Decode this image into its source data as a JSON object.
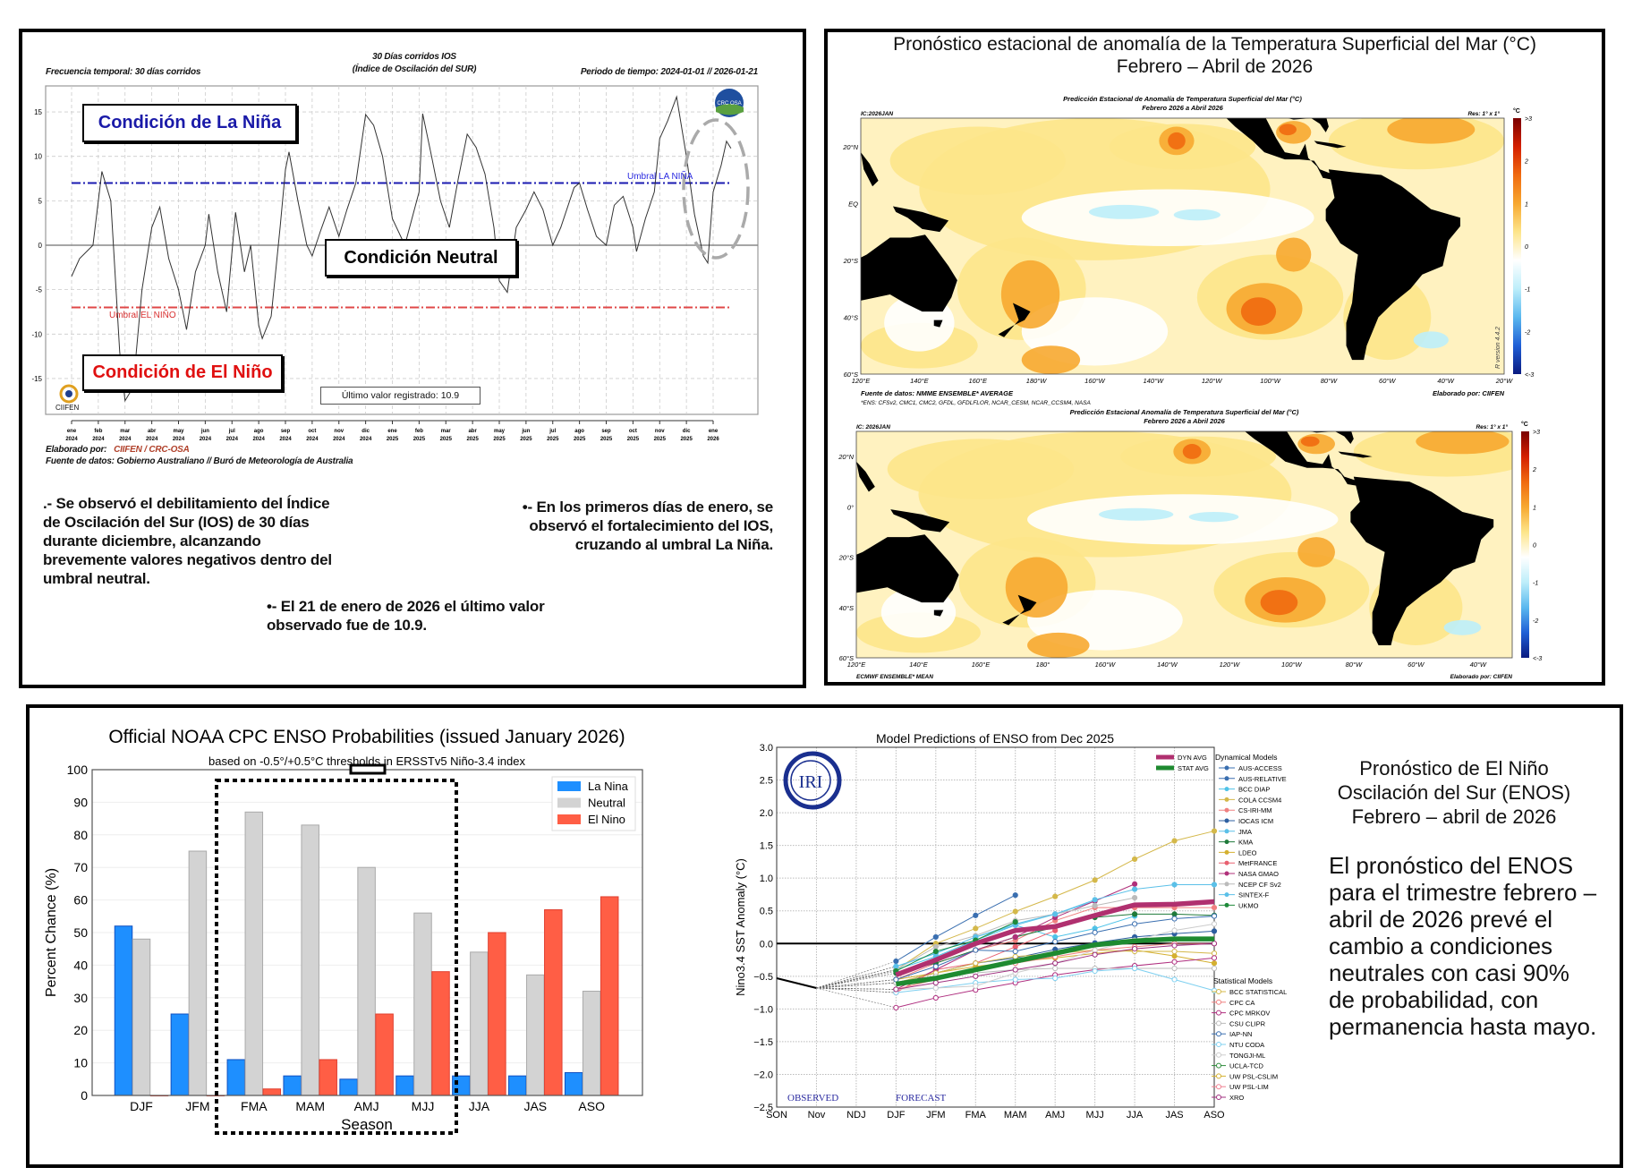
{
  "ios_panel": {
    "freq_label": "Frecuencia temporal: 30 días corridos",
    "title_line1": "30 Días corridos IOS",
    "title_line2": "(Índice de Oscilación del SUR)",
    "period_label": "Periodo de tiempo: 2024-01-01 // 2026-01-21",
    "la_nina_box": "Condición de La Niña",
    "neutral_box": "Condición Neutral",
    "el_nino_box": "Condición de El Niño",
    "last_value_box": "Último valor registrado: 10.9",
    "threshold_la_nina": "Umbral LA NIÑA",
    "threshold_el_nino": "Umbral EL NIÑO",
    "crc_logo": "CRC OSA",
    "ciifen_logo": "CIIFEN",
    "made_by_label": "Elaborado por:",
    "made_by_value": "CIIFEN / CRC-OSA",
    "source": "Fuente de datos: Gobierno Australiano // Buró de Meteorología de Australia",
    "paragraph1": ".- Se observó el debilitamiento del Índice\nde Oscilación del Sur (IOS) de 30 días\ndurante diciembre, alcanzando\nbrevemente valores negativos dentro del\numbral neutral.",
    "paragraph2": "•- En los primeros días de enero, se\nobservó el fortalecimiento del IOS,\ncruzando al umbral La Niña.",
    "paragraph3": "•- El 21 de enero de 2026 el último valor\nobservado fue de 10.9."
  },
  "sst_panel": {
    "title_line1": "Pronóstico estacional de anomalía de la Temperatura Superficial del Mar (°C)",
    "title_line2": "Febrero – Abril de 2026",
    "map1": {
      "title1": "Predicción Estacional de Anomalía de Temperatura Superficial del Mar (°C)",
      "title2": "Febrero 2026 a Abril 2026",
      "ic": "IC:2026JAN",
      "res": "Res: 1° x 1°",
      "unit": "°C",
      "lat_labels": [
        "20°N",
        "EQ",
        "20°S",
        "40°S",
        "60°S"
      ],
      "lon_labels": [
        "120°E",
        "140°E",
        "160°E",
        "180°W",
        "160°W",
        "140°W",
        "120°W",
        "100°W",
        "80°W",
        "60°W",
        "40°W",
        "20°W"
      ],
      "colorbar_labels": [
        ">3",
        "2",
        "1",
        "0",
        "-1",
        "-2",
        "<-3"
      ],
      "source": "Fuente de datos: NMME ENSEMBLE* AVERAGE",
      "ens": "*ENS: CFSv2, CMC1, CMC2, GFDL, GFDLFLOR, NCAR_CESM, NCAR_CCSM4, NASA",
      "made_by": "Elaborado por: CIIFEN",
      "version": "R version 4.4.2"
    },
    "map2": {
      "title1": "Predicción Estacional Anomalía de Temperatura Superficial del Mar (°C)",
      "title2": "Febrero 2026 a Abril 2026",
      "ic": "IC: 2026JAN",
      "res": "Res: 1° x 1°",
      "unit": "°C",
      "lat_labels": [
        "20°N",
        "0°",
        "20°S",
        "40°S",
        "60°S"
      ],
      "lon_labels": [
        "120°E",
        "140°E",
        "160°E",
        "180°",
        "160°W",
        "140°W",
        "120°W",
        "100°W",
        "80°W",
        "60°W",
        "40°W"
      ],
      "colorbar_labels": [
        ">3",
        "2",
        "1",
        "0",
        "-1",
        "-2",
        "<-3"
      ],
      "source": "ECMWF ENSEMBLE* MEAN",
      "made_by": "Elaborado por: CIIFEN"
    },
    "colorscale": [
      "#7a0000",
      "#d42000",
      "#f06a10",
      "#f7a830",
      "#fde58a",
      "#ffffff",
      "#bdeefa",
      "#5ab8ef",
      "#1f5fd6",
      "#0a1a80"
    ]
  },
  "enos_text": {
    "title": "Pronóstico de El Niño\nOscilación del Sur (ENOS)\nFebrero – abril de 2026",
    "body": "El pronóstico del ENOS\npara el trimestre febrero –\nabril de 2026 prevé el\ncambio a condiciones\nneutrales con casi 90%\nde probabilidad, con\npermanencia hasta mayo."
  },
  "chart_data": [
    {
      "type": "line",
      "title": "30 Días corridos IOS (Índice de Oscilación del SUR)",
      "ylim": [
        -19,
        18
      ],
      "yticks": [
        -15,
        -10,
        -5,
        0,
        5,
        10,
        15
      ],
      "thresholds": {
        "la_nina": 7,
        "el_nino": -7
      },
      "grid": true,
      "line_color": "#333333",
      "x_tick_labels": [
        [
          "ene",
          "2024"
        ],
        [
          "feb",
          "2024"
        ],
        [
          "mar",
          "2024"
        ],
        [
          "abr",
          "2024"
        ],
        [
          "may",
          "2024"
        ],
        [
          "jun",
          "2024"
        ],
        [
          "jul",
          "2024"
        ],
        [
          "ago",
          "2024"
        ],
        [
          "sep",
          "2024"
        ],
        [
          "oct",
          "2024"
        ],
        [
          "nov",
          "2024"
        ],
        [
          "dic",
          "2024"
        ],
        [
          "ene",
          "2025"
        ],
        [
          "feb",
          "2025"
        ],
        [
          "mar",
          "2025"
        ],
        [
          "abr",
          "2025"
        ],
        [
          "may",
          "2025"
        ],
        [
          "jun",
          "2025"
        ],
        [
          "jul",
          "2025"
        ],
        [
          "ago",
          "2025"
        ],
        [
          "sep",
          "2025"
        ],
        [
          "oct",
          "2025"
        ],
        [
          "nov",
          "2025"
        ],
        [
          "dic",
          "2025"
        ],
        [
          "ene",
          "2026"
        ]
      ],
      "points": [
        [
          "2024-01-01",
          -3.5
        ],
        [
          "2024-01-10",
          -1.5
        ],
        [
          "2024-01-25",
          0
        ],
        [
          "2024-02-05",
          8.3
        ],
        [
          "2024-02-15",
          5
        ],
        [
          "2024-02-25",
          -12
        ],
        [
          "2024-03-01",
          -17.5
        ],
        [
          "2024-03-10",
          -16
        ],
        [
          "2024-03-20",
          -5
        ],
        [
          "2024-04-01",
          2
        ],
        [
          "2024-04-10",
          4.3
        ],
        [
          "2024-04-20",
          -1.5
        ],
        [
          "2024-05-01",
          -5
        ],
        [
          "2024-05-10",
          -9.5
        ],
        [
          "2024-05-20",
          -3
        ],
        [
          "2024-06-01",
          0
        ],
        [
          "2024-06-05",
          3.5
        ],
        [
          "2024-06-15",
          -3
        ],
        [
          "2024-06-25",
          -7.5
        ],
        [
          "2024-07-05",
          3.7
        ],
        [
          "2024-07-15",
          -3
        ],
        [
          "2024-07-22",
          0
        ],
        [
          "2024-08-01",
          -9
        ],
        [
          "2024-08-05",
          -10.5
        ],
        [
          "2024-08-15",
          -8
        ],
        [
          "2024-08-25",
          2
        ],
        [
          "2024-09-01",
          8.5
        ],
        [
          "2024-09-05",
          10.5
        ],
        [
          "2024-09-15",
          5
        ],
        [
          "2024-09-25",
          0
        ],
        [
          "2024-10-01",
          -1.2
        ],
        [
          "2024-10-10",
          1.5
        ],
        [
          "2024-10-20",
          4.3
        ],
        [
          "2024-11-01",
          1
        ],
        [
          "2024-11-10",
          4
        ],
        [
          "2024-11-20",
          7
        ],
        [
          "2024-12-01",
          14.7
        ],
        [
          "2024-12-10",
          13.5
        ],
        [
          "2024-12-20",
          10
        ],
        [
          "2025-01-01",
          3
        ],
        [
          "2025-01-15",
          0
        ],
        [
          "2025-02-01",
          6
        ],
        [
          "2025-02-05",
          14.8
        ],
        [
          "2025-02-15",
          10
        ],
        [
          "2025-02-25",
          5
        ],
        [
          "2025-03-05",
          2
        ],
        [
          "2025-03-15",
          7.5
        ],
        [
          "2025-03-25",
          12.5
        ],
        [
          "2025-04-05",
          11
        ],
        [
          "2025-04-15",
          8
        ],
        [
          "2025-04-25",
          2
        ],
        [
          "2025-05-01",
          -4
        ],
        [
          "2025-05-10",
          -5.3
        ],
        [
          "2025-05-20",
          2
        ],
        [
          "2025-06-01",
          4
        ],
        [
          "2025-06-10",
          6
        ],
        [
          "2025-06-20",
          4
        ],
        [
          "2025-07-01",
          0
        ],
        [
          "2025-07-10",
          2
        ],
        [
          "2025-07-25",
          6.5
        ],
        [
          "2025-08-01",
          7
        ],
        [
          "2025-08-10",
          4
        ],
        [
          "2025-08-20",
          1
        ],
        [
          "2025-09-01",
          0
        ],
        [
          "2025-09-10",
          4.5
        ],
        [
          "2025-09-20",
          5.5
        ],
        [
          "2025-10-01",
          2
        ],
        [
          "2025-10-05",
          -0.7
        ],
        [
          "2025-10-15",
          3
        ],
        [
          "2025-10-25",
          6
        ],
        [
          "2025-11-01",
          12
        ],
        [
          "2025-11-10",
          14
        ],
        [
          "2025-11-20",
          16.7
        ],
        [
          "2025-12-01",
          10
        ],
        [
          "2025-12-10",
          3.5
        ],
        [
          "2025-12-20",
          -1.2
        ],
        [
          "2025-12-25",
          -2
        ],
        [
          "2026-01-01",
          6
        ],
        [
          "2026-01-10",
          9
        ],
        [
          "2026-01-16",
          11.7
        ],
        [
          "2026-01-21",
          10.9
        ]
      ]
    },
    {
      "type": "bar",
      "title": "Official NOAA CPC ENSO Probabilities (issued January 2026)",
      "subtitle": "based on -0.5°/+0.5°C thresholds in ERSSTv5 Niño-3.4 index",
      "xlabel": "Season",
      "ylabel": "Percent Chance (%)",
      "ylim": [
        0,
        100
      ],
      "yticks": [
        0,
        10,
        20,
        30,
        40,
        50,
        60,
        70,
        80,
        90,
        100
      ],
      "legend_position": "top-right",
      "categories": [
        "DJF",
        "JFM",
        "FMA",
        "MAM",
        "AMJ",
        "MJJ",
        "JJA",
        "JAS",
        "ASO"
      ],
      "series": [
        {
          "name": "La Nina",
          "color": "#1e8fff",
          "values": [
            52,
            25,
            11,
            6,
            5,
            6,
            6,
            6,
            7
          ]
        },
        {
          "name": "Neutral",
          "color": "#d3d3d3",
          "values": [
            48,
            75,
            87,
            83,
            70,
            56,
            44,
            37,
            32
          ]
        },
        {
          "name": "El Nino",
          "color": "#ff5e45",
          "values": [
            0,
            0,
            2,
            11,
            25,
            38,
            50,
            57,
            61
          ]
        }
      ],
      "highlight": [
        "FMA",
        "MAM",
        "AMJ",
        "MJJ"
      ]
    },
    {
      "type": "line",
      "title": "Model Predictions of ENSO from Dec 2025",
      "ylabel": "Nino3.4 SST Anomaly (°C)",
      "ylim": [
        -2.5,
        3.0
      ],
      "yticks": [
        "3.0",
        "2.5",
        "2.0",
        "1.5",
        "1.0",
        "0.5",
        "0.0",
        "−0.5",
        "−1.0",
        "−1.5",
        "−2.0",
        "−2.5"
      ],
      "categories": [
        "SON",
        "Nov",
        "NDJ",
        "DJF",
        "JFM",
        "FMA",
        "MAM",
        "AMJ",
        "MJJ",
        "JJA",
        "JAS",
        "ASO"
      ],
      "observed_label": "OBSERVED",
      "forecast_label": "FORECAST",
      "logo": "IRI",
      "observed": [
        -0.53,
        -0.68
      ],
      "averages": [
        {
          "name": "DYN AVG",
          "color": "#b0306f",
          "values": [
            -0.48,
            -0.25,
            0.0,
            0.2,
            0.26,
            0.43,
            0.59,
            0.6,
            0.64
          ]
        },
        {
          "name": "STAT AVG",
          "color": "#1e8a30",
          "values": [
            -0.62,
            -0.53,
            -0.4,
            -0.27,
            -0.15,
            -0.02,
            0.04,
            0.07,
            0.07
          ]
        }
      ],
      "dynamical_title": "Dynamical Models",
      "statistical_title": "Statistical Models",
      "dynamical_models": [
        {
          "name": "AUS-ACCESS",
          "color": "#3a6fb0",
          "marker": "circle",
          "values": [
            -0.27,
            0.1,
            0.43,
            0.74
          ]
        },
        {
          "name": "AUS-RELATIVE",
          "color": "#3a6fb0",
          "marker": "triangle",
          "values": []
        },
        {
          "name": "BCC DIAP",
          "color": "#4fc3e8",
          "marker": "square",
          "values": [
            -0.4,
            -0.2,
            0.05,
            0.28,
            0.1,
            0.23,
            0.42
          ]
        },
        {
          "name": "COLA CCSM4",
          "color": "#d4b84a",
          "marker": "triangle",
          "values": [
            -0.4,
            0.0,
            0.23,
            0.49,
            0.72,
            0.97,
            1.29,
            1.57,
            1.72
          ]
        },
        {
          "name": "CS-IRI-MM",
          "color": "#f08080",
          "marker": "triangle-down",
          "values": [
            -0.55,
            -0.3,
            -0.1,
            0.05,
            0.35,
            0.55,
            0.55,
            0.55,
            0.55
          ]
        },
        {
          "name": "IOCAS ICM",
          "color": "#2e5fa0",
          "marker": "diamond",
          "values": [
            -0.6,
            -0.45,
            -0.3,
            -0.22,
            -0.09,
            0.01,
            0.1,
            0.15,
            0.19
          ]
        },
        {
          "name": "JMA",
          "color": "#5bc0e8",
          "marker": "triangle",
          "values": [
            -0.35,
            -0.15,
            0.1,
            0.28,
            0.45,
            0.65
          ]
        },
        {
          "name": "KMA",
          "color": "#1f7a3a",
          "marker": "triangle-down",
          "values": [
            -0.45,
            -0.3,
            -0.1,
            0.1,
            0.25,
            0.4,
            0.45,
            0.45,
            0.43
          ]
        },
        {
          "name": "LDEO",
          "color": "#d4b030",
          "marker": "circle",
          "values": [
            -0.55,
            -0.45,
            -0.35,
            -0.28,
            -0.22,
            -0.15,
            -0.1,
            -0.19,
            -0.3
          ]
        },
        {
          "name": "MetFRANCE",
          "color": "#e86070",
          "marker": "square",
          "values": [
            -0.75,
            -0.4,
            -0.3,
            -0.05,
            0.2
          ]
        },
        {
          "name": "NASA GMAO",
          "color": "#b0307a",
          "marker": "diamond",
          "values": [
            -0.7,
            -0.4,
            -0.1,
            0.1,
            0.4,
            0.65,
            0.91
          ]
        },
        {
          "name": "NCEP CF Sv2",
          "color": "#bbbbbb",
          "marker": "triangle",
          "values": [
            -0.4,
            -0.05,
            0.12,
            0.35,
            0.45,
            0.58,
            0.7
          ]
        },
        {
          "name": "SINTEX-F",
          "color": "#5bc0e8",
          "marker": "circle",
          "values": [
            -0.35,
            -0.15,
            0.1,
            0.3,
            0.45,
            0.67,
            0.83,
            0.9,
            0.9
          ]
        },
        {
          "name": "UKMO",
          "color": "#1f8a3a",
          "marker": "square",
          "values": [
            -0.42,
            -0.12,
            0.05,
            0.33
          ]
        }
      ],
      "statistical_models": [
        {
          "name": "BCC STATISTICAL",
          "color": "#d4b84a",
          "marker": "circle-open",
          "values": [
            -0.6,
            -0.45,
            -0.3,
            -0.2,
            -0.15,
            -0.1,
            -0.12,
            -0.12,
            -0.15
          ]
        },
        {
          "name": "CPC CA",
          "color": "#f08080",
          "marker": "square-open",
          "values": [
            -0.7,
            -0.55,
            -0.4,
            -0.3,
            -0.2,
            -0.1,
            -0.05,
            0.0,
            0.0
          ]
        },
        {
          "name": "CPC MRKOV",
          "color": "#b03080",
          "marker": "diamond-open",
          "values": [
            -0.98,
            -0.83,
            -0.71,
            -0.6,
            -0.48,
            -0.4,
            -0.34,
            -0.28,
            -0.22
          ]
        },
        {
          "name": "CSU CLIPR",
          "color": "#bbbbbb",
          "marker": "triangle-open",
          "values": [
            -0.6,
            -0.5,
            -0.45,
            -0.4,
            -0.38,
            -0.38,
            -0.38,
            -0.38,
            -0.38
          ]
        },
        {
          "name": "IAP-NN",
          "color": "#3a6fb0",
          "marker": "triangle-down-open",
          "values": [
            -0.55,
            -0.35,
            -0.1,
            -0.12,
            0.03,
            0.17,
            0.3,
            0.38,
            0.42
          ]
        },
        {
          "name": "NTU CODA",
          "color": "#7fd0f0",
          "marker": "circle-open",
          "values": [
            -0.75,
            -0.68,
            -0.6,
            -0.55,
            -0.53,
            -0.42,
            -0.38,
            -0.55,
            -0.72
          ]
        },
        {
          "name": "TONGJI-ML",
          "color": "#cccccc",
          "marker": "circle-open",
          "values": [
            -0.7,
            -0.68,
            -0.65,
            -0.45,
            -0.3,
            -0.1,
            0.05,
            0.2,
            0.3
          ]
        },
        {
          "name": "UCLA-TCD",
          "color": "#2e8b3a",
          "marker": "square-open",
          "values": []
        },
        {
          "name": "UW PSL-CSLIM",
          "color": "#d4b030",
          "marker": "diamond-open",
          "values": []
        },
        {
          "name": "UW PSL-LIM",
          "color": "#f08090",
          "marker": "triangle-open",
          "values": []
        },
        {
          "name": "XRO",
          "color": "#a03080",
          "marker": "triangle-down-open",
          "values": [
            -0.7,
            -0.6,
            -0.5,
            -0.4,
            -0.3,
            -0.17,
            -0.08,
            -0.03,
            0.0
          ]
        }
      ]
    }
  ]
}
